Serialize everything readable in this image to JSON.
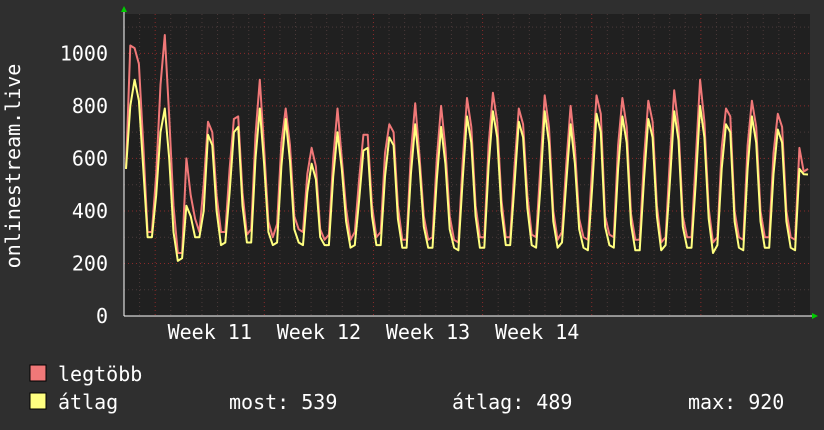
{
  "chart_data": {
    "type": "line",
    "ylabel": "onlinestream.live",
    "ylim": [
      0,
      1150
    ],
    "yticks": [
      0,
      200,
      400,
      600,
      800,
      1000
    ],
    "week_labels": [
      "Week 11",
      "Week 12",
      "Week 13",
      "Week 14"
    ],
    "grid": true,
    "background": "#202020",
    "grid_color": "#8a2a2a",
    "series": [
      {
        "name": "legtöbb",
        "color": "#f07878",
        "values": [
          560,
          1030,
          1020,
          960,
          650,
          320,
          320,
          540,
          880,
          1070,
          760,
          420,
          240,
          240,
          600,
          460,
          370,
          320,
          500,
          740,
          700,
          460,
          320,
          320,
          560,
          750,
          760,
          470,
          310,
          330,
          690,
          900,
          640,
          360,
          300,
          350,
          660,
          790,
          650,
          380,
          330,
          320,
          540,
          640,
          570,
          330,
          290,
          310,
          600,
          790,
          600,
          410,
          290,
          320,
          520,
          690,
          690,
          420,
          300,
          320,
          620,
          730,
          700,
          420,
          290,
          290,
          620,
          810,
          610,
          380,
          290,
          300,
          600,
          800,
          640,
          380,
          290,
          280,
          590,
          830,
          720,
          420,
          300,
          300,
          650,
          850,
          740,
          440,
          300,
          300,
          570,
          790,
          730,
          460,
          310,
          300,
          570,
          840,
          720,
          400,
          290,
          320,
          580,
          800,
          640,
          370,
          300,
          290,
          570,
          840,
          770,
          380,
          310,
          300,
          650,
          830,
          720,
          390,
          290,
          290,
          600,
          820,
          740,
          420,
          280,
          300,
          600,
          860,
          720,
          380,
          300,
          300,
          600,
          900,
          740,
          410,
          280,
          300,
          640,
          790,
          760,
          400,
          300,
          290,
          650,
          820,
          720,
          400,
          300,
          300,
          620,
          770,
          720,
          400,
          300,
          290,
          640,
          550,
          560
        ]
      },
      {
        "name": "átlag",
        "color": "#ffff80",
        "values": [
          560,
          800,
          900,
          820,
          560,
          300,
          300,
          460,
          700,
          790,
          600,
          320,
          210,
          220,
          420,
          380,
          300,
          300,
          400,
          690,
          650,
          400,
          270,
          280,
          470,
          700,
          720,
          420,
          280,
          280,
          600,
          790,
          580,
          320,
          270,
          280,
          570,
          750,
          590,
          330,
          280,
          270,
          470,
          580,
          520,
          300,
          270,
          270,
          530,
          700,
          560,
          360,
          260,
          270,
          440,
          630,
          640,
          380,
          270,
          270,
          530,
          680,
          650,
          370,
          260,
          260,
          540,
          730,
          570,
          340,
          260,
          260,
          520,
          720,
          580,
          330,
          260,
          250,
          520,
          760,
          660,
          380,
          260,
          260,
          570,
          780,
          680,
          400,
          270,
          270,
          500,
          740,
          680,
          410,
          270,
          260,
          490,
          780,
          660,
          360,
          260,
          280,
          510,
          730,
          580,
          330,
          260,
          250,
          490,
          770,
          700,
          340,
          270,
          260,
          560,
          760,
          660,
          350,
          250,
          250,
          520,
          750,
          680,
          380,
          250,
          270,
          510,
          780,
          670,
          340,
          260,
          260,
          510,
          800,
          680,
          370,
          240,
          270,
          560,
          730,
          700,
          360,
          260,
          250,
          560,
          760,
          660,
          360,
          260,
          260,
          540,
          710,
          660,
          360,
          260,
          250,
          560,
          540,
          539
        ]
      }
    ]
  },
  "legend": {
    "max_name": "legtöbb",
    "avg_name": "átlag",
    "stats": {
      "now": "most: 539",
      "average": "átlag: 489",
      "max": "max: 920"
    }
  }
}
